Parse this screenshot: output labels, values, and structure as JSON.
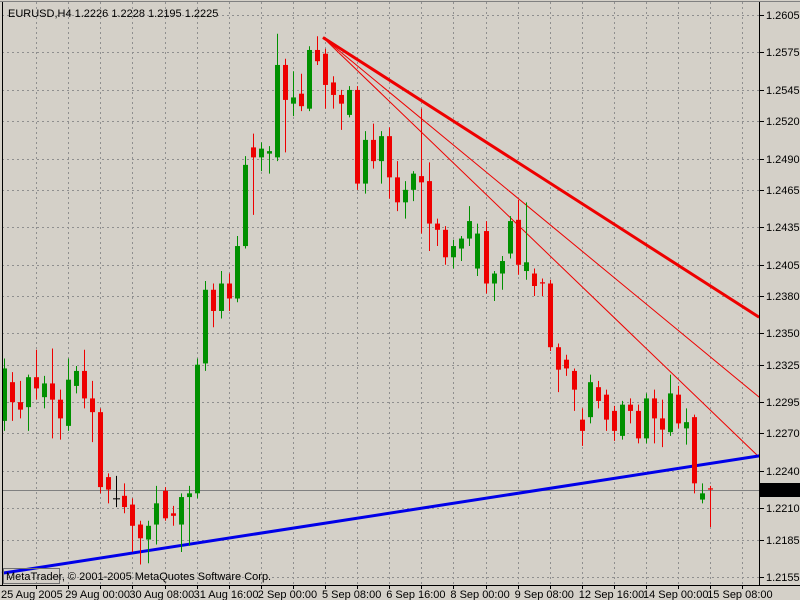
{
  "header": {
    "text": "EURUSD,H4  1.2226 1.2228 1.2195 1.2225",
    "symbol": "EURUSD",
    "timeframe": "H4"
  },
  "watermark": {
    "text": "MetaTrader, © 2001-2005 MetaQuotes Software Corp."
  },
  "price_axis": {
    "labels": [
      "1.2605",
      "1.2575",
      "1.2545",
      "1.2520",
      "1.2490",
      "1.2465",
      "1.2435",
      "1.2405",
      "1.2380",
      "1.2350",
      "1.2325",
      "1.2295",
      "1.2270",
      "1.2240",
      "1.2210",
      "1.2185",
      "1.2155"
    ],
    "current_price": "1.2225"
  },
  "time_axis": {
    "labels": [
      {
        "text": "25 Aug 2005",
        "bar": 0
      },
      {
        "text": "29 Aug 00:00",
        "bar": 8
      },
      {
        "text": "30 Aug 08:00",
        "bar": 16
      },
      {
        "text": "31 Aug 16:00",
        "bar": 24
      },
      {
        "text": "2 Sep 00:00",
        "bar": 32
      },
      {
        "text": "5 Sep 08:00",
        "bar": 40
      },
      {
        "text": "6 Sep 16:00",
        "bar": 48
      },
      {
        "text": "8 Sep 00:00",
        "bar": 56
      },
      {
        "text": "9 Sep 08:00",
        "bar": 64
      },
      {
        "text": "12 Sep 16:00",
        "bar": 72
      },
      {
        "text": "14 Sep 00:00",
        "bar": 80
      },
      {
        "text": "15 Sep 08:00",
        "bar": 88
      }
    ]
  },
  "chart_data": {
    "type": "candlestick",
    "title": "EURUSD,H4",
    "symbol": "EURUSD",
    "timeframe": "H4",
    "ylim": [
      1.2155,
      1.2605
    ],
    "grid": true,
    "current_bar_ohlc": {
      "open": 1.2226,
      "high": 1.2228,
      "low": 1.2195,
      "close": 1.2225
    },
    "current_price": 1.2225,
    "colors": {
      "background": "#d4d0c8",
      "grid": "#8f8f8f",
      "bull": "#009000",
      "bear": "#ee0000",
      "doji": "#000000",
      "trend_red": "#ee0000",
      "trend_blue": "#0000e8",
      "price_line": "#808080",
      "price_box_bg": "#000000",
      "price_box_text": "#ffffff"
    },
    "ohlc": [
      [
        1.228,
        1.233,
        1.2272,
        1.2322
      ],
      [
        1.2311,
        1.2319,
        1.228,
        1.2295
      ],
      [
        1.2295,
        1.2312,
        1.2282,
        1.2289
      ],
      [
        1.2291,
        1.2317,
        1.2272,
        1.2315
      ],
      [
        1.2315,
        1.2337,
        1.2297,
        1.2306
      ],
      [
        1.2299,
        1.2316,
        1.229,
        1.231
      ],
      [
        1.231,
        1.2338,
        1.2266,
        1.2297
      ],
      [
        1.2297,
        1.2305,
        1.2265,
        1.2282
      ],
      [
        1.2276,
        1.233,
        1.2272,
        1.2313
      ],
      [
        1.2308,
        1.2324,
        1.2302,
        1.232
      ],
      [
        1.232,
        1.2337,
        1.229,
        1.2298
      ],
      [
        1.2298,
        1.2312,
        1.2263,
        1.2287
      ],
      [
        1.2287,
        1.229,
        1.2222,
        1.2227
      ],
      [
        1.2235,
        1.2238,
        1.2214,
        1.2225
      ],
      [
        1.2218,
        1.2236,
        1.2211,
        1.2218
      ],
      [
        1.222,
        1.223,
        1.2206,
        1.2211
      ],
      [
        1.2213,
        1.2218,
        1.2175,
        1.2196
      ],
      [
        1.2197,
        1.22,
        1.2165,
        1.2186
      ],
      [
        1.2185,
        1.22,
        1.2166,
        1.2196
      ],
      [
        1.2197,
        1.2228,
        1.2181,
        1.2214
      ],
      [
        1.2224,
        1.2227,
        1.22,
        1.2202
      ],
      [
        1.2206,
        1.2212,
        1.2196,
        1.2204
      ],
      [
        1.2197,
        1.2222,
        1.2175,
        1.2219
      ],
      [
        1.2219,
        1.2228,
        1.218,
        1.2222
      ],
      [
        1.2222,
        1.233,
        1.2218,
        1.2325
      ],
      [
        1.2326,
        1.2392,
        1.232,
        1.2385
      ],
      [
        1.2385,
        1.239,
        1.2355,
        1.2368
      ],
      [
        1.2368,
        1.24,
        1.2362,
        1.239
      ],
      [
        1.239,
        1.2398,
        1.2368,
        1.2378
      ],
      [
        1.2378,
        1.2428,
        1.2375,
        1.242
      ],
      [
        1.242,
        1.2492,
        1.2418,
        1.2485
      ],
      [
        1.2499,
        1.251,
        1.2445,
        1.2491
      ],
      [
        1.2491,
        1.2503,
        1.248,
        1.2498
      ],
      [
        1.2494,
        1.25,
        1.2478,
        1.2496
      ],
      [
        1.2491,
        1.259,
        1.2488,
        1.2565
      ],
      [
        1.2565,
        1.257,
        1.2495,
        1.2537
      ],
      [
        1.2534,
        1.256,
        1.2524,
        1.2539
      ],
      [
        1.2542,
        1.2558,
        1.2528,
        1.2532
      ],
      [
        1.253,
        1.258,
        1.2528,
        1.2577
      ],
      [
        1.2577,
        1.2588,
        1.2565,
        1.2568
      ],
      [
        1.2574,
        1.2578,
        1.253,
        1.2549
      ],
      [
        1.2551,
        1.2556,
        1.253,
        1.2541
      ],
      [
        1.2541,
        1.2545,
        1.2513,
        1.2534
      ],
      [
        1.2525,
        1.2548,
        1.2523,
        1.2545
      ],
      [
        1.2545,
        1.2548,
        1.2465,
        1.247
      ],
      [
        1.247,
        1.2512,
        1.2462,
        1.2505
      ],
      [
        1.2505,
        1.2518,
        1.2482,
        1.2488
      ],
      [
        1.2488,
        1.2512,
        1.247,
        1.2508
      ],
      [
        1.2508,
        1.2515,
        1.2458,
        1.2475
      ],
      [
        1.2475,
        1.2488,
        1.2448,
        1.2455
      ],
      [
        1.2455,
        1.2472,
        1.2442,
        1.2465
      ],
      [
        1.2465,
        1.248,
        1.2456,
        1.2478
      ],
      [
        1.2476,
        1.253,
        1.243,
        1.2471
      ],
      [
        1.2472,
        1.2487,
        1.2416,
        1.2438
      ],
      [
        1.2438,
        1.2442,
        1.242,
        1.2433
      ],
      [
        1.2433,
        1.2436,
        1.2405,
        1.2411
      ],
      [
        1.2411,
        1.2425,
        1.2402,
        1.242
      ],
      [
        1.2418,
        1.2428,
        1.2408,
        1.2426
      ],
      [
        1.2426,
        1.2452,
        1.242,
        1.244
      ],
      [
        1.2402,
        1.2438,
        1.2396,
        1.243
      ],
      [
        1.2432,
        1.244,
        1.2382,
        1.239
      ],
      [
        1.239,
        1.24,
        1.2376,
        1.2398
      ],
      [
        1.2398,
        1.2412,
        1.2385,
        1.2408
      ],
      [
        1.2414,
        1.2444,
        1.241,
        1.244
      ],
      [
        1.2441,
        1.2457,
        1.2397,
        1.2405
      ],
      [
        1.24,
        1.2455,
        1.2393,
        1.2407
      ],
      [
        1.2398,
        1.2402,
        1.238,
        1.2388
      ],
      [
        1.2391,
        1.2394,
        1.238,
        1.239
      ],
      [
        1.239,
        1.2393,
        1.2336,
        1.2339
      ],
      [
        1.2339,
        1.2342,
        1.2303,
        1.2321
      ],
      [
        1.2329,
        1.2333,
        1.2316,
        1.2322
      ],
      [
        1.232,
        1.2322,
        1.2288,
        1.2305
      ],
      [
        1.2281,
        1.229,
        1.226,
        1.2272
      ],
      [
        1.2283,
        1.2317,
        1.2278,
        1.2311
      ],
      [
        1.2307,
        1.2312,
        1.229,
        1.2296
      ],
      [
        1.2301,
        1.2305,
        1.2272,
        1.2281
      ],
      [
        1.2288,
        1.2292,
        1.2264,
        1.2272
      ],
      [
        1.2268,
        1.2296,
        1.2265,
        1.2293
      ],
      [
        1.2293,
        1.2298,
        1.2278,
        1.2288
      ],
      [
        1.2288,
        1.2293,
        1.2262,
        1.2266
      ],
      [
        1.2266,
        1.2302,
        1.2262,
        1.2298
      ],
      [
        1.2298,
        1.2305,
        1.2262,
        1.2282
      ],
      [
        1.2282,
        1.2297,
        1.2259,
        1.2273
      ],
      [
        1.2271,
        1.2317,
        1.2268,
        1.2302
      ],
      [
        1.2301,
        1.2308,
        1.2274,
        1.2278
      ],
      [
        1.2274,
        1.229,
        1.2261,
        1.2279
      ],
      [
        1.2283,
        1.2285,
        1.2222,
        1.223
      ],
      [
        1.2217,
        1.223,
        1.2214,
        1.2222
      ],
      [
        1.2226,
        1.2228,
        1.2195,
        1.2225
      ]
    ],
    "trendlines": [
      {
        "name": "descending-resistance-main",
        "color": "#ee0000",
        "width": 3,
        "points": [
          [
            39.75,
            1.2587
          ],
          [
            94.1,
            1.2363
          ]
        ]
      },
      {
        "name": "descending-inner-1",
        "color": "#ee0000",
        "width": 1,
        "points": [
          [
            39.75,
            1.2587
          ],
          [
            94.1,
            1.2299
          ]
        ]
      },
      {
        "name": "descending-inner-2",
        "color": "#ee0000",
        "width": 1,
        "points": [
          [
            39.75,
            1.2587
          ],
          [
            94.1,
            1.2251
          ]
        ]
      },
      {
        "name": "ascending-support",
        "color": "#0000e8",
        "width": 3,
        "points": [
          [
            -0.25,
            1.2158
          ],
          [
            94.1,
            1.2252
          ]
        ]
      }
    ]
  }
}
